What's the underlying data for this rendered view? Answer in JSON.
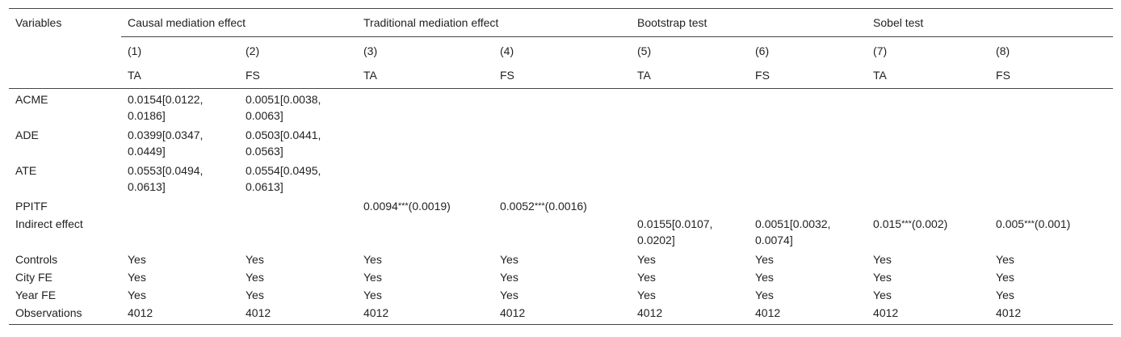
{
  "header": {
    "variables_label": "Variables",
    "groups": [
      "Causal mediation effect",
      "Traditional mediation effect",
      "Bootstrap test",
      "Sobel test"
    ],
    "col_numbers": [
      "(1)",
      "(2)",
      "(3)",
      "(4)",
      "(5)",
      "(6)",
      "(7)",
      "(8)"
    ],
    "col_vars": [
      "TA",
      "FS",
      "TA",
      "FS",
      "TA",
      "FS",
      "TA",
      "FS"
    ]
  },
  "rows": [
    {
      "label": "ACME",
      "cells": [
        "0.0154[0.0122, 0.0186]",
        "0.0051[0.0038, 0.0063]",
        "",
        "",
        "",
        "",
        "",
        ""
      ]
    },
    {
      "label": "ADE",
      "cells": [
        "0.0399[0.0347, 0.0449]",
        "0.0503[0.0441, 0.0563]",
        "",
        "",
        "",
        "",
        "",
        ""
      ]
    },
    {
      "label": "ATE",
      "cells": [
        "0.0553[0.0494, 0.0613]",
        "0.0554[0.0495, 0.0613]",
        "",
        "",
        "",
        "",
        "",
        ""
      ]
    },
    {
      "label": "PPITF",
      "cells": [
        "",
        "",
        "0.0094***(0.0019)",
        "0.0052***(0.0016)",
        "",
        "",
        "",
        ""
      ]
    },
    {
      "label": "Indirect effect",
      "cells": [
        "",
        "",
        "",
        "",
        "0.0155[0.0107, 0.0202]",
        "0.0051[0.0032, 0.0074]",
        "0.015***(0.002)",
        "0.005***(0.001)"
      ]
    },
    {
      "label": "Controls",
      "cells": [
        "Yes",
        "Yes",
        "Yes",
        "Yes",
        "Yes",
        "Yes",
        "Yes",
        "Yes"
      ]
    },
    {
      "label": "City FE",
      "cells": [
        "Yes",
        "Yes",
        "Yes",
        "Yes",
        "Yes",
        "Yes",
        "Yes",
        "Yes"
      ]
    },
    {
      "label": "Year FE",
      "cells": [
        "Yes",
        "Yes",
        "Yes",
        "Yes",
        "Yes",
        "Yes",
        "Yes",
        "Yes"
      ]
    },
    {
      "label": "Observations",
      "cells": [
        "4012",
        "4012",
        "4012",
        "4012",
        "4012",
        "4012",
        "4012",
        "4012"
      ]
    }
  ]
}
